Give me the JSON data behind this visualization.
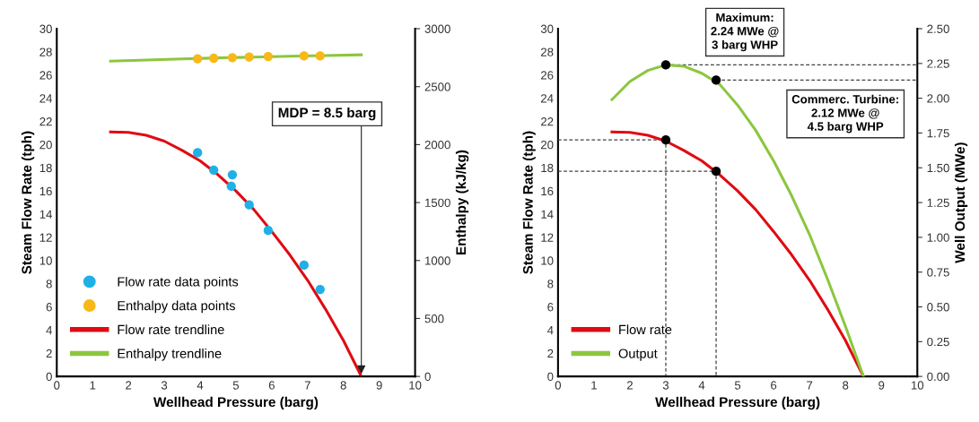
{
  "chart_data": [
    {
      "type": "line",
      "xlabel": "Wellhead Pressure (barg)",
      "ylabel": "Steam Flow Rate (tph)",
      "y2label": "Enthalpy (kJ/kg)",
      "xlim": [
        0,
        10
      ],
      "xticks": [
        0,
        1,
        2,
        3,
        4,
        5,
        6,
        7,
        8,
        9,
        10
      ],
      "ylim": [
        0,
        30
      ],
      "yticks": [
        0,
        2,
        4,
        6,
        8,
        10,
        12,
        14,
        16,
        18,
        20,
        22,
        24,
        26,
        28,
        30
      ],
      "y2lim": [
        0,
        3000
      ],
      "y2ticks": [
        0,
        500,
        1000,
        1500,
        2000,
        2500,
        3000
      ],
      "legend": "bottom left",
      "annotations": [
        {
          "text": "MDP = 8.5 barg",
          "x": 8.5,
          "y": 0
        }
      ],
      "series": [
        {
          "name": "Flow rate data points",
          "type": "scatter",
          "marker": "circle",
          "color": "#1fb0e6",
          "x": [
            3.93,
            4.38,
            4.9,
            4.87,
            5.37,
            5.9,
            6.9,
            7.35
          ],
          "values": [
            19.3,
            17.8,
            17.4,
            16.4,
            14.8,
            12.6,
            9.6,
            7.5
          ]
        },
        {
          "name": "Enthalpy data points",
          "type": "scatter",
          "marker": "circle",
          "color": "#f7b818",
          "axis": "y2",
          "x": [
            3.93,
            4.38,
            4.9,
            5.37,
            5.9,
            6.9,
            7.35
          ],
          "values": [
            2740,
            2745,
            2750,
            2755,
            2760,
            2765,
            2765
          ]
        },
        {
          "name": "Flow rate trendline",
          "color": "#e00b12",
          "x": [
            1.5,
            2,
            2.5,
            3,
            3.5,
            4,
            4.5,
            5,
            5.5,
            6,
            6.5,
            7,
            7.5,
            8,
            8.5
          ],
          "values": [
            21.1,
            21.05,
            20.8,
            20.3,
            19.5,
            18.6,
            17.4,
            16.0,
            14.4,
            12.5,
            10.5,
            8.3,
            5.8,
            3.1,
            0
          ]
        },
        {
          "name": "Enthalpy trendline",
          "color": "#8cc63f",
          "axis": "y2",
          "x": [
            1.5,
            2.5,
            3.5,
            4.5,
            5.5,
            6.5,
            7.5,
            8.5
          ],
          "values": [
            2720,
            2730,
            2740,
            2748,
            2755,
            2762,
            2768,
            2775
          ]
        }
      ]
    },
    {
      "type": "line",
      "xlabel": "Wellhead Pressure (barg)",
      "ylabel": "Steam Flow Rate (tph)",
      "y2label": "Well Output (MWe)",
      "xlim": [
        0,
        10
      ],
      "xticks": [
        0,
        1,
        2,
        3,
        4,
        5,
        6,
        7,
        8,
        9,
        10
      ],
      "ylim": [
        0,
        30
      ],
      "yticks": [
        0,
        2,
        4,
        6,
        8,
        10,
        12,
        14,
        16,
        18,
        20,
        22,
        24,
        26,
        28,
        30
      ],
      "y2lim": [
        0,
        2.5
      ],
      "y2ticks": [
        {
          "value": 0,
          "label": "0.00"
        },
        {
          "value": 0.25,
          "label": "0.25"
        },
        {
          "value": 0.5,
          "label": "0.50"
        },
        {
          "value": 0.75,
          "label": "0.75"
        },
        {
          "value": 1,
          "label": "1.00"
        },
        {
          "value": 1.25,
          "label": "1.25"
        },
        {
          "value": 1.5,
          "label": "1.50"
        },
        {
          "value": 1.75,
          "label": "1.75"
        },
        {
          "value": 2,
          "label": "2.00"
        },
        {
          "value": 2.25,
          "label": "2.25"
        },
        {
          "value": 2.5,
          "label": "2.50"
        }
      ],
      "legend": "bottom left",
      "annotations": [
        "Maximum:\n2.24 MWe @\n3 barg WHP",
        "Commerc. Turbine:\n2.12 MWe @\n4.5 barg WHP"
      ],
      "series": [
        {
          "type": "line",
          "line_style": "dashed",
          "color": "#404040",
          "x": [
            0,
            3,
            3
          ],
          "values": [
            20.4,
            20.4,
            0
          ]
        },
        {
          "type": "line",
          "line_style": "dashed",
          "color": "#404040",
          "x": [
            0,
            4.4,
            4.4
          ],
          "values": [
            17.7,
            17.7,
            0
          ]
        },
        {
          "type": "line",
          "line_style": "dashed",
          "color": "#404040",
          "axis": "y2",
          "x": [
            3,
            10
          ],
          "values": [
            2.24,
            2.24
          ]
        },
        {
          "type": "line",
          "line_style": "dashed",
          "color": "#404040",
          "axis": "y2",
          "x": [
            4.4,
            10
          ],
          "values": [
            2.13,
            2.13
          ]
        },
        {
          "name": "Flow rate",
          "color": "#e00b12",
          "x": [
            1.5,
            2,
            2.5,
            3,
            3.5,
            4,
            4.5,
            5,
            5.5,
            6,
            6.5,
            7,
            7.5,
            8,
            8.5
          ],
          "values": [
            21.1,
            21.05,
            20.8,
            20.3,
            19.5,
            18.6,
            17.4,
            16.0,
            14.4,
            12.5,
            10.5,
            8.3,
            5.8,
            3.1,
            0
          ]
        },
        {
          "name": "Output",
          "color": "#8cc63f",
          "axis": "y2",
          "x": [
            1.5,
            2,
            2.5,
            3,
            3.5,
            4,
            4.5,
            5,
            5.5,
            6,
            6.5,
            7,
            7.5,
            8,
            8.5
          ],
          "values": [
            1.99,
            2.12,
            2.2,
            2.24,
            2.23,
            2.18,
            2.1,
            1.95,
            1.77,
            1.55,
            1.3,
            1.02,
            0.7,
            0.36,
            0
          ]
        },
        {
          "type": "scatter",
          "marker": "circle",
          "color": "#000000",
          "x": [
            3,
            4.4
          ],
          "values": [
            20.4,
            17.7
          ]
        },
        {
          "type": "scatter",
          "marker": "circle",
          "color": "#000000",
          "axis": "y2",
          "x": [
            3,
            4.4
          ],
          "values": [
            2.24,
            2.13
          ]
        }
      ]
    }
  ]
}
